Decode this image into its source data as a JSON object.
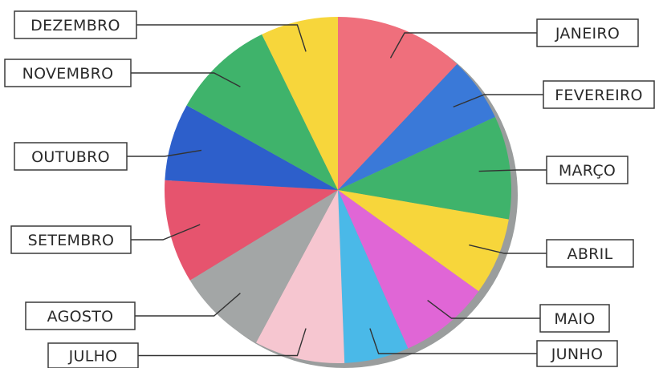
{
  "chart_data": {
    "type": "pie",
    "categories": [
      "JANEIRO",
      "FEVEREIRO",
      "MARÇO",
      "ABRIL",
      "MAIO",
      "JUNHO",
      "JULHO",
      "AGOSTO",
      "SETEMBRO",
      "OUTUBRO",
      "NOVEMBRO",
      "DEZEMBRO"
    ],
    "values": [
      10,
      5,
      8,
      6,
      7,
      5,
      7,
      7,
      8,
      6,
      8,
      6
    ],
    "colors": [
      "#ef6f7c",
      "#3a79d8",
      "#3fb36b",
      "#f7d63b",
      "#e066d6",
      "#4ab9e8",
      "#f6c6d0",
      "#a3a6a6",
      "#e6546e",
      "#2d5fcb",
      "#3fb36b",
      "#f7d63b"
    ],
    "start": "top",
    "direction": "clockwise",
    "title": "",
    "legend": "callout-labels"
  }
}
